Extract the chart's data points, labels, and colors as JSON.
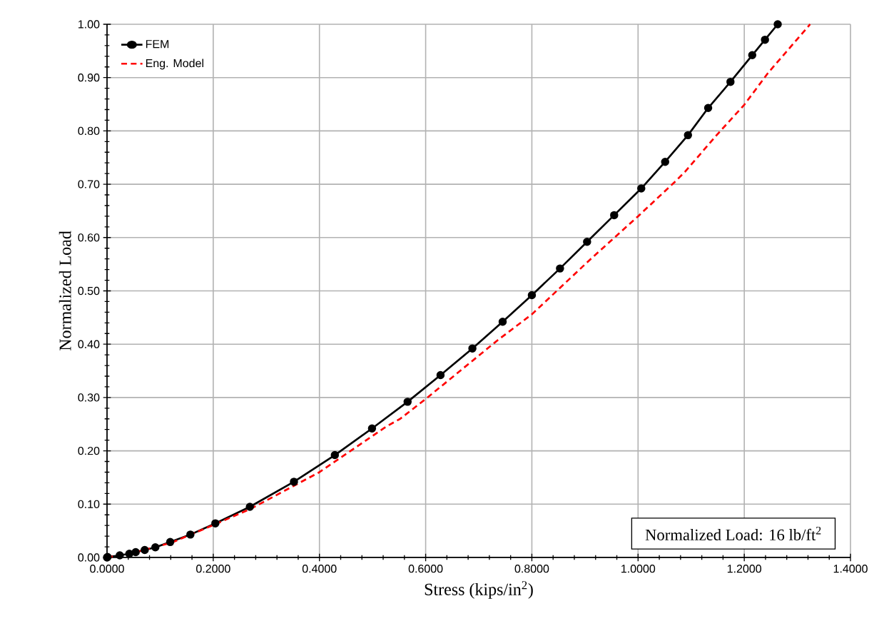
{
  "chart_data": {
    "type": "line",
    "xlabel": "Stress (kips/in$^{2}$)",
    "ylabel": "Normalized Load",
    "annotations": [
      "Normalized Load: 16 lb/ft$^{2}$"
    ],
    "xlim": [
      0,
      1.4
    ],
    "ylim": [
      0,
      1.0
    ],
    "xticks": [
      {
        "value": 0,
        "label": "0.0000"
      },
      {
        "value": 0.2,
        "label": "0.2000"
      },
      {
        "value": 0.4,
        "label": "0.4000"
      },
      {
        "value": 0.6,
        "label": "0.6000"
      },
      {
        "value": 0.8,
        "label": "0.8000"
      },
      {
        "value": 1.0,
        "label": "1.0000"
      },
      {
        "value": 1.2,
        "label": "1.2000"
      },
      {
        "value": 1.4,
        "label": "1.4000"
      }
    ],
    "yticks": [
      {
        "value": 0,
        "label": "0.00"
      },
      {
        "value": 0.1,
        "label": "0.10"
      },
      {
        "value": 0.2,
        "label": "0.20"
      },
      {
        "value": 0.3,
        "label": "0.30"
      },
      {
        "value": 0.4,
        "label": "0.40"
      },
      {
        "value": 0.5,
        "label": "0.50"
      },
      {
        "value": 0.6,
        "label": "0.60"
      },
      {
        "value": 0.7,
        "label": "0.70"
      },
      {
        "value": 0.8,
        "label": "0.80"
      },
      {
        "value": 0.9,
        "label": "0.90"
      },
      {
        "value": 1.0,
        "label": "1.00"
      }
    ],
    "grid": true,
    "legend": "top left",
    "series": [
      {
        "name": "FEM",
        "color": "#000000",
        "marker": "circle",
        "line_style": "solid",
        "x": [
          0,
          0.001,
          0.024,
          0.042,
          0.054,
          0.071,
          0.091,
          0.119,
          0.157,
          0.204,
          0.269,
          0.352,
          0.429,
          0.499,
          0.566,
          0.628,
          0.688,
          0.745,
          0.8,
          0.853,
          0.904,
          0.955,
          1.006,
          1.051,
          1.094,
          1.132,
          1.174,
          1.215,
          1.239,
          1.263
        ],
        "values": [
          0,
          0.001,
          0.004,
          0.007,
          0.01,
          0.014,
          0.019,
          0.029,
          0.043,
          0.064,
          0.095,
          0.142,
          0.192,
          0.242,
          0.292,
          0.342,
          0.392,
          0.442,
          0.492,
          0.542,
          0.592,
          0.642,
          0.692,
          0.742,
          0.792,
          0.843,
          0.892,
          0.942,
          0.971,
          1.0
        ]
      },
      {
        "name": "Eng. Model",
        "color": "#ff0000",
        "marker": "none",
        "line_style": "dashed",
        "x": [
          0,
          0.054,
          0.122,
          0.203,
          0.27,
          0.4,
          0.525,
          0.552,
          0.601,
          0.735,
          0.8,
          0.91,
          0.999,
          1.071,
          1.089,
          1.147,
          1.2,
          1.245,
          1.324
        ],
        "values": [
          0,
          0.01,
          0.028,
          0.062,
          0.091,
          0.16,
          0.245,
          0.26,
          0.298,
          0.407,
          0.456,
          0.559,
          0.639,
          0.706,
          0.724,
          0.791,
          0.849,
          0.909,
          1.0
        ]
      }
    ]
  }
}
